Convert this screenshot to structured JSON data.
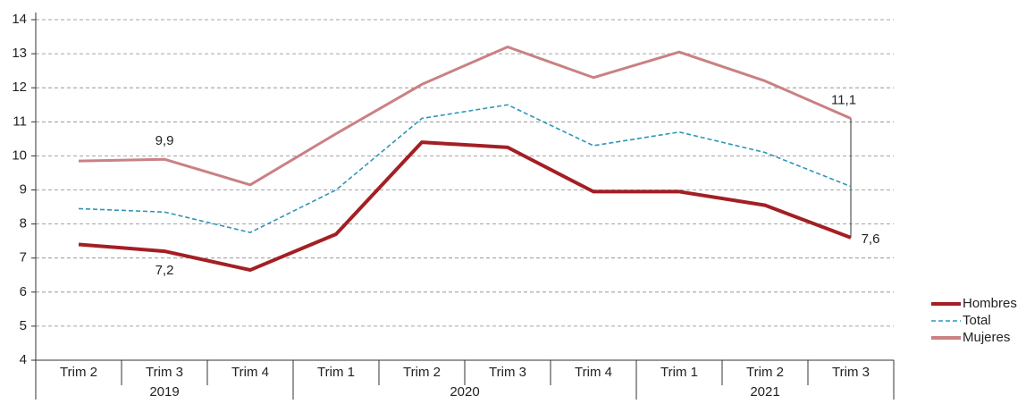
{
  "chart_data": {
    "type": "line",
    "categories": [
      "Trim 2",
      "Trim 3",
      "Trim 4",
      "Trim 1",
      "Trim 2",
      "Trim 3",
      "Trim 4",
      "Trim 1",
      "Trim 2",
      "Trim 3"
    ],
    "years": [
      "2019",
      "2019",
      "2019",
      "2020",
      "2020",
      "2020",
      "2020",
      "2021",
      "2021",
      "2021"
    ],
    "series": [
      {
        "name": "Hombres",
        "color": "#a31f24",
        "values": [
          7.4,
          7.2,
          6.65,
          7.7,
          10.4,
          10.25,
          8.95,
          8.95,
          8.55,
          7.6
        ],
        "value_labels": [
          null,
          "7,2",
          null,
          null,
          null,
          null,
          null,
          null,
          null,
          "7,6"
        ]
      },
      {
        "name": "Total",
        "color": "#2e95b8",
        "dashed": true,
        "values": [
          8.45,
          8.35,
          7.75,
          9.0,
          11.1,
          11.5,
          10.3,
          10.7,
          10.1,
          9.1
        ]
      },
      {
        "name": "Mujeres",
        "color": "#c98184",
        "values": [
          9.85,
          9.9,
          9.15,
          10.65,
          12.1,
          13.2,
          12.3,
          13.05,
          12.2,
          11.1
        ],
        "value_labels": [
          null,
          "9,9",
          null,
          null,
          null,
          null,
          null,
          null,
          null,
          "11,1"
        ]
      }
    ],
    "ylim": [
      4,
      14
    ],
    "yticks": [
      4,
      5,
      6,
      7,
      8,
      9,
      10,
      11,
      12,
      13,
      14
    ],
    "grid": true,
    "legend": "right"
  }
}
